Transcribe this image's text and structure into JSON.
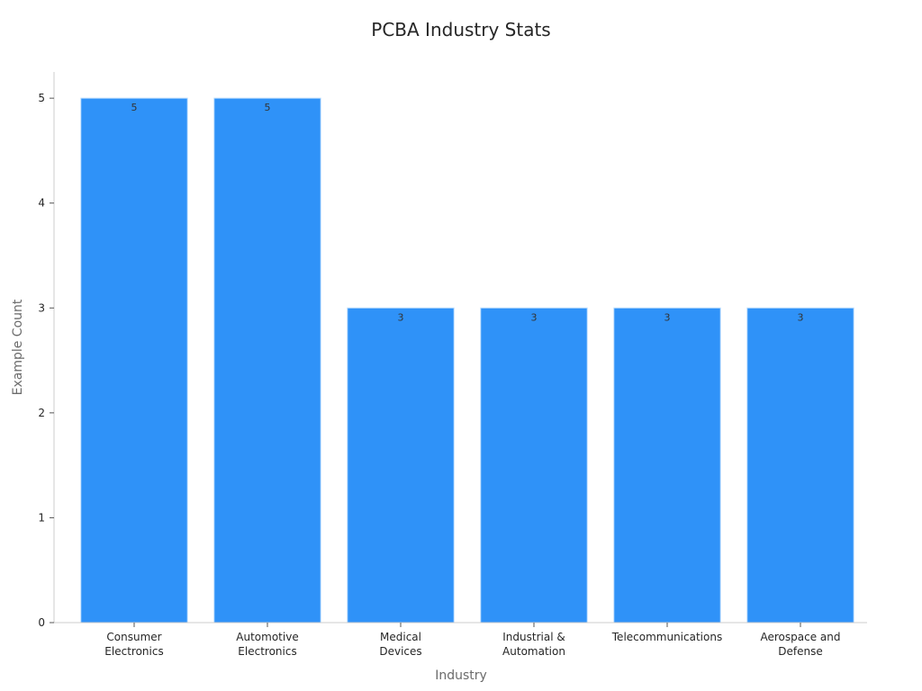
{
  "chart_data": {
    "type": "bar",
    "title": "PCBA Industry Stats",
    "xlabel": "Industry",
    "ylabel": "Example Count",
    "categories": [
      [
        "Consumer",
        "Electronics"
      ],
      [
        "Automotive",
        "Electronics"
      ],
      [
        "Medical",
        "Devices"
      ],
      [
        "Industrial &",
        "Automation"
      ],
      [
        "Telecommunications"
      ],
      [
        "Aerospace and",
        "Defense"
      ]
    ],
    "values": [
      5,
      5,
      3,
      3,
      3,
      3
    ],
    "ylim": [
      0,
      5.25
    ],
    "yticks": [
      0,
      1,
      2,
      3,
      4,
      5
    ],
    "grid": false,
    "colors": {
      "bar": "#2f92f8",
      "bar_edge": "#b9dcfd",
      "axis": "#cccccc"
    }
  }
}
